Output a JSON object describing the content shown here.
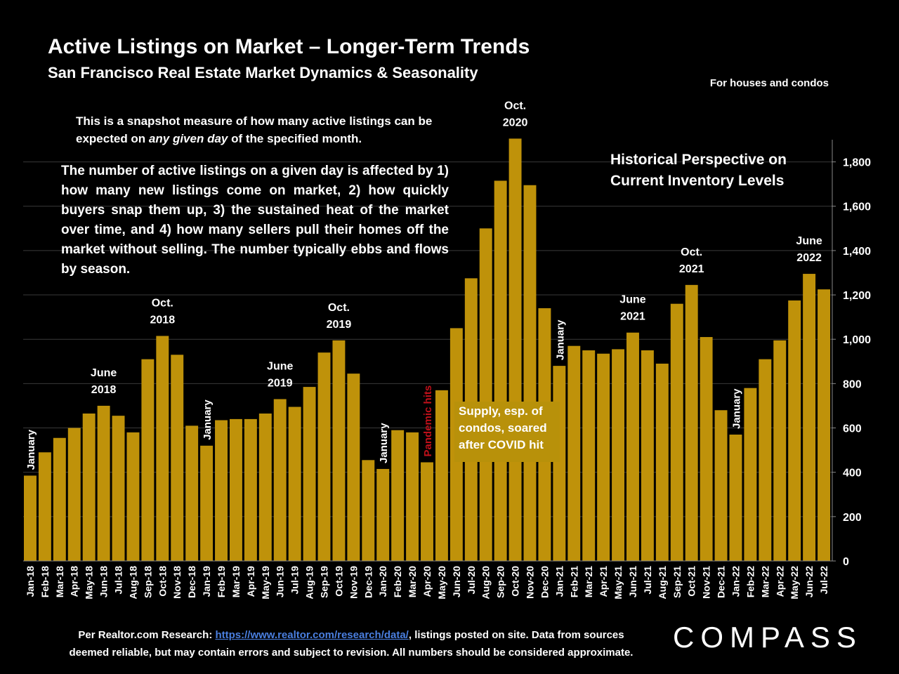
{
  "header": {
    "title": "Active Listings on Market – Longer-Term Trends",
    "subtitle": "San Francisco Real Estate Market Dynamics & Seasonality",
    "scope_note": "For houses and condos"
  },
  "notes": {
    "snapshot_pre": "This is a snapshot measure of how many active listings can be expected on ",
    "snapshot_em": "any given day",
    "snapshot_post": " of the specified month.",
    "explanation": "The number of active listings on a given day is affected by 1) how many new listings come on market, 2) how quickly buyers snap them up, 3) the sustained heat of the market over time, and 4) how many sellers pull their homes off the market without selling. The number typically ebbs and flows by season.",
    "historical_line1": "Historical Perspective on",
    "historical_line2": "Current Inventory Levels",
    "covid_box": "Supply, esp. of condos, soared after COVID hit"
  },
  "footer": {
    "source_prefix": "Per Realtor.com Research:  ",
    "source_link": "https://www.realtor.com/research/data/",
    "source_suffix": ", listings posted on site. Data from sources",
    "source_line2": "deemed reliable, but may contain errors and subject to revision. All numbers should be considered approximate.",
    "logo": "COMPASS"
  },
  "colors": {
    "bar": "#bf920a",
    "background": "#000000",
    "text": "#ffffff",
    "pandemic_label": "#c0101a",
    "link": "#4a7fe0"
  },
  "chart_data": {
    "type": "bar",
    "categories": [
      "Jan-18",
      "Feb-18",
      "Mar-18",
      "Apr-18",
      "May-18",
      "Jun-18",
      "Jul-18",
      "Aug-18",
      "Sep-18",
      "Oct-18",
      "Nov-18",
      "Dec-18",
      "Jan-19",
      "Feb-19",
      "Mar-19",
      "Apr-19",
      "May-19",
      "Jun-19",
      "Jul-19",
      "Aug-19",
      "Sep-19",
      "Oct-19",
      "Nov-19",
      "Dec-19",
      "Jan-20",
      "Feb-20",
      "Mar-20",
      "Apr-20",
      "May-20",
      "Jun-20",
      "Jul-20",
      "Aug-20",
      "Sep-20",
      "Oct-20",
      "Nov-20",
      "Dec-20",
      "Jan-21",
      "Feb-21",
      "Mar-21",
      "Apr-21",
      "May-21",
      "Jun-21",
      "Jul-21",
      "Aug-21",
      "Sep-21",
      "Oct-21",
      "Nov-21",
      "Dec-21",
      "Jan-22",
      "Feb-22",
      "Mar-22",
      "Apr-22",
      "May-22",
      "Jun-22",
      "Jul-22"
    ],
    "values": [
      385,
      490,
      555,
      600,
      665,
      700,
      655,
      580,
      910,
      1015,
      930,
      610,
      520,
      635,
      640,
      640,
      665,
      730,
      695,
      785,
      940,
      995,
      845,
      455,
      415,
      590,
      580,
      445,
      770,
      1050,
      1275,
      1500,
      1715,
      1905,
      1695,
      1140,
      880,
      970,
      950,
      935,
      955,
      1030,
      950,
      890,
      1160,
      1245,
      1010,
      680,
      570,
      780,
      910,
      995,
      1175,
      1295,
      1225
    ],
    "yticks": [
      0,
      200,
      400,
      600,
      800,
      1000,
      1200,
      1400,
      1600,
      1800
    ],
    "ytick_labels": [
      "0",
      "200",
      "400",
      "600",
      "800",
      "1,000",
      "1,200",
      "1,400",
      "1,600",
      "1,800"
    ],
    "ylim": [
      0,
      1900
    ],
    "grid": true,
    "axis_position": "right",
    "peak_labels": [
      {
        "index": 5,
        "line1": "June",
        "line2": "2018"
      },
      {
        "index": 9,
        "line1": "Oct.",
        "line2": "2018"
      },
      {
        "index": 17,
        "line1": "June",
        "line2": "2019"
      },
      {
        "index": 21,
        "line1": "Oct.",
        "line2": "2019"
      },
      {
        "index": 33,
        "line1": "Oct.",
        "line2": "2020"
      },
      {
        "index": 41,
        "line1": "June",
        "line2": "2021"
      },
      {
        "index": 45,
        "line1": "Oct.",
        "line2": "2021"
      },
      {
        "index": 53,
        "line1": "June",
        "line2": "2022"
      }
    ],
    "vertical_labels": [
      {
        "index": 0,
        "text": "January"
      },
      {
        "index": 12,
        "text": "January"
      },
      {
        "index": 24,
        "text": "January"
      },
      {
        "index": 27,
        "text": "Pandemic hits",
        "highlight": true
      },
      {
        "index": 36,
        "text": "January"
      },
      {
        "index": 48,
        "text": "January"
      }
    ]
  }
}
